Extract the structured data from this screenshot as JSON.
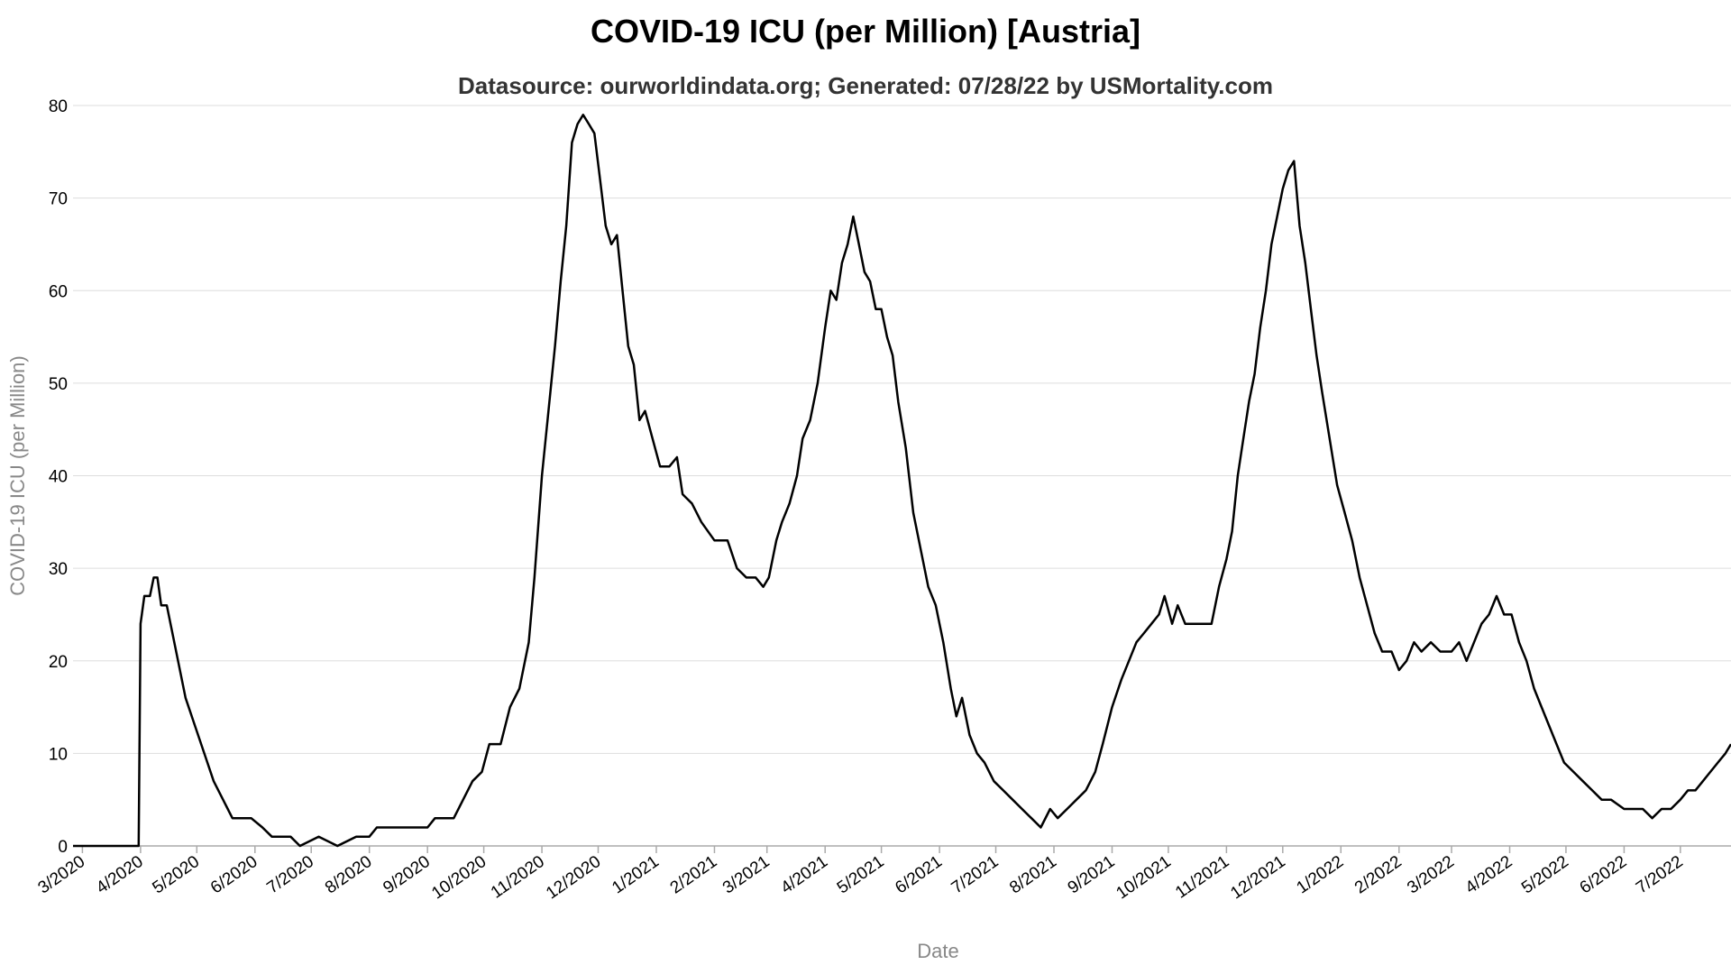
{
  "chart_data": {
    "type": "line",
    "title": "COVID-19 ICU (per Million) [Austria]",
    "subtitle": "Datasource: ourworldindata.org; Generated: 07/28/22 by USMortality.com",
    "xlabel": "Date",
    "ylabel": "COVID-19 ICU (per Million)",
    "ylim": [
      0,
      80
    ],
    "yticks": [
      0,
      10,
      20,
      30,
      40,
      50,
      60,
      70,
      80
    ],
    "xlim": [
      "2020-02-25",
      "2022-07-28"
    ],
    "xticks": [
      {
        "date": "2020-03-01",
        "label": "3/2020"
      },
      {
        "date": "2020-04-01",
        "label": "4/2020"
      },
      {
        "date": "2020-05-01",
        "label": "5/2020"
      },
      {
        "date": "2020-06-01",
        "label": "6/2020"
      },
      {
        "date": "2020-07-01",
        "label": "7/2020"
      },
      {
        "date": "2020-08-01",
        "label": "8/2020"
      },
      {
        "date": "2020-09-01",
        "label": "9/2020"
      },
      {
        "date": "2020-10-01",
        "label": "10/2020"
      },
      {
        "date": "2020-11-01",
        "label": "11/2020"
      },
      {
        "date": "2020-12-01",
        "label": "12/2020"
      },
      {
        "date": "2021-01-01",
        "label": "1/2021"
      },
      {
        "date": "2021-02-01",
        "label": "2/2021"
      },
      {
        "date": "2021-03-01",
        "label": "3/2021"
      },
      {
        "date": "2021-04-01",
        "label": "4/2021"
      },
      {
        "date": "2021-05-01",
        "label": "5/2021"
      },
      {
        "date": "2021-06-01",
        "label": "6/2021"
      },
      {
        "date": "2021-07-01",
        "label": "7/2021"
      },
      {
        "date": "2021-08-01",
        "label": "8/2021"
      },
      {
        "date": "2021-09-01",
        "label": "9/2021"
      },
      {
        "date": "2021-10-01",
        "label": "10/2021"
      },
      {
        "date": "2021-11-01",
        "label": "11/2021"
      },
      {
        "date": "2021-12-01",
        "label": "12/2021"
      },
      {
        "date": "2022-01-01",
        "label": "1/2022"
      },
      {
        "date": "2022-02-01",
        "label": "2/2022"
      },
      {
        "date": "2022-03-01",
        "label": "3/2022"
      },
      {
        "date": "2022-04-01",
        "label": "4/2022"
      },
      {
        "date": "2022-05-01",
        "label": "5/2022"
      },
      {
        "date": "2022-06-01",
        "label": "6/2022"
      },
      {
        "date": "2022-07-01",
        "label": "7/2022"
      }
    ],
    "grid": true,
    "line_color": "#000000",
    "series": [
      {
        "points": [
          [
            "2020-02-25",
            0
          ],
          [
            "2020-03-31",
            0
          ],
          [
            "2020-04-01",
            24
          ],
          [
            "2020-04-03",
            27
          ],
          [
            "2020-04-06",
            27
          ],
          [
            "2020-04-08",
            29
          ],
          [
            "2020-04-10",
            29
          ],
          [
            "2020-04-12",
            26
          ],
          [
            "2020-04-15",
            26
          ],
          [
            "2020-04-20",
            21
          ],
          [
            "2020-04-25",
            16
          ],
          [
            "2020-04-30",
            13
          ],
          [
            "2020-05-05",
            10
          ],
          [
            "2020-05-10",
            7
          ],
          [
            "2020-05-15",
            5
          ],
          [
            "2020-05-20",
            3
          ],
          [
            "2020-05-30",
            3
          ],
          [
            "2020-06-05",
            2
          ],
          [
            "2020-06-10",
            1
          ],
          [
            "2020-06-20",
            1
          ],
          [
            "2020-06-25",
            0
          ],
          [
            "2020-07-05",
            1
          ],
          [
            "2020-07-15",
            0
          ],
          [
            "2020-07-25",
            1
          ],
          [
            "2020-08-01",
            1
          ],
          [
            "2020-08-05",
            2
          ],
          [
            "2020-08-20",
            2
          ],
          [
            "2020-09-01",
            2
          ],
          [
            "2020-09-05",
            3
          ],
          [
            "2020-09-15",
            3
          ],
          [
            "2020-09-20",
            5
          ],
          [
            "2020-09-25",
            7
          ],
          [
            "2020-09-30",
            8
          ],
          [
            "2020-10-04",
            11
          ],
          [
            "2020-10-10",
            11
          ],
          [
            "2020-10-15",
            15
          ],
          [
            "2020-10-20",
            17
          ],
          [
            "2020-10-25",
            22
          ],
          [
            "2020-10-28",
            29
          ],
          [
            "2020-11-01",
            40
          ],
          [
            "2020-11-05",
            48
          ],
          [
            "2020-11-08",
            54
          ],
          [
            "2020-11-11",
            61
          ],
          [
            "2020-11-14",
            67
          ],
          [
            "2020-11-17",
            76
          ],
          [
            "2020-11-20",
            78
          ],
          [
            "2020-11-23",
            79
          ],
          [
            "2020-11-26",
            78
          ],
          [
            "2020-11-29",
            77
          ],
          [
            "2020-12-02",
            72
          ],
          [
            "2020-12-05",
            67
          ],
          [
            "2020-12-08",
            65
          ],
          [
            "2020-12-11",
            66
          ],
          [
            "2020-12-14",
            60
          ],
          [
            "2020-12-17",
            54
          ],
          [
            "2020-12-20",
            52
          ],
          [
            "2020-12-23",
            46
          ],
          [
            "2020-12-26",
            47
          ],
          [
            "2020-12-30",
            44
          ],
          [
            "2021-01-03",
            41
          ],
          [
            "2021-01-08",
            41
          ],
          [
            "2021-01-12",
            42
          ],
          [
            "2021-01-15",
            38
          ],
          [
            "2021-01-20",
            37
          ],
          [
            "2021-01-25",
            35
          ],
          [
            "2021-02-01",
            33
          ],
          [
            "2021-02-08",
            33
          ],
          [
            "2021-02-13",
            30
          ],
          [
            "2021-02-18",
            29
          ],
          [
            "2021-02-23",
            29
          ],
          [
            "2021-02-27",
            28
          ],
          [
            "2021-03-02",
            29
          ],
          [
            "2021-03-06",
            33
          ],
          [
            "2021-03-09",
            35
          ],
          [
            "2021-03-13",
            37
          ],
          [
            "2021-03-17",
            40
          ],
          [
            "2021-03-20",
            44
          ],
          [
            "2021-03-24",
            46
          ],
          [
            "2021-03-28",
            50
          ],
          [
            "2021-04-01",
            56
          ],
          [
            "2021-04-04",
            60
          ],
          [
            "2021-04-07",
            59
          ],
          [
            "2021-04-10",
            63
          ],
          [
            "2021-04-13",
            65
          ],
          [
            "2021-04-16",
            68
          ],
          [
            "2021-04-19",
            65
          ],
          [
            "2021-04-22",
            62
          ],
          [
            "2021-04-25",
            61
          ],
          [
            "2021-04-28",
            58
          ],
          [
            "2021-05-01",
            58
          ],
          [
            "2021-05-04",
            55
          ],
          [
            "2021-05-07",
            53
          ],
          [
            "2021-05-10",
            48
          ],
          [
            "2021-05-14",
            43
          ],
          [
            "2021-05-18",
            36
          ],
          [
            "2021-05-22",
            32
          ],
          [
            "2021-05-26",
            28
          ],
          [
            "2021-05-30",
            26
          ],
          [
            "2021-06-03",
            22
          ],
          [
            "2021-06-07",
            17
          ],
          [
            "2021-06-10",
            14
          ],
          [
            "2021-06-13",
            16
          ],
          [
            "2021-06-17",
            12
          ],
          [
            "2021-06-21",
            10
          ],
          [
            "2021-06-25",
            9
          ],
          [
            "2021-06-30",
            7
          ],
          [
            "2021-07-05",
            6
          ],
          [
            "2021-07-10",
            5
          ],
          [
            "2021-07-15",
            4
          ],
          [
            "2021-07-20",
            3
          ],
          [
            "2021-07-25",
            2
          ],
          [
            "2021-07-30",
            4
          ],
          [
            "2021-08-03",
            3
          ],
          [
            "2021-08-08",
            4
          ],
          [
            "2021-08-13",
            5
          ],
          [
            "2021-08-18",
            6
          ],
          [
            "2021-08-23",
            8
          ],
          [
            "2021-08-27",
            11
          ],
          [
            "2021-09-01",
            15
          ],
          [
            "2021-09-06",
            18
          ],
          [
            "2021-09-10",
            20
          ],
          [
            "2021-09-14",
            22
          ],
          [
            "2021-09-18",
            23
          ],
          [
            "2021-09-22",
            24
          ],
          [
            "2021-09-26",
            25
          ],
          [
            "2021-09-29",
            27
          ],
          [
            "2021-10-03",
            24
          ],
          [
            "2021-10-06",
            26
          ],
          [
            "2021-10-10",
            24
          ],
          [
            "2021-10-20",
            24
          ],
          [
            "2021-10-24",
            24
          ],
          [
            "2021-10-28",
            28
          ],
          [
            "2021-11-01",
            31
          ],
          [
            "2021-11-04",
            34
          ],
          [
            "2021-11-07",
            40
          ],
          [
            "2021-11-10",
            44
          ],
          [
            "2021-11-13",
            48
          ],
          [
            "2021-11-16",
            51
          ],
          [
            "2021-11-19",
            56
          ],
          [
            "2021-11-22",
            60
          ],
          [
            "2021-11-25",
            65
          ],
          [
            "2021-11-28",
            68
          ],
          [
            "2021-12-01",
            71
          ],
          [
            "2021-12-04",
            73
          ],
          [
            "2021-12-07",
            74
          ],
          [
            "2021-12-10",
            67
          ],
          [
            "2021-12-13",
            63
          ],
          [
            "2021-12-16",
            58
          ],
          [
            "2021-12-19",
            53
          ],
          [
            "2021-12-22",
            49
          ],
          [
            "2021-12-26",
            44
          ],
          [
            "2021-12-30",
            39
          ],
          [
            "2022-01-03",
            36
          ],
          [
            "2022-01-07",
            33
          ],
          [
            "2022-01-11",
            29
          ],
          [
            "2022-01-15",
            26
          ],
          [
            "2022-01-19",
            23
          ],
          [
            "2022-01-23",
            21
          ],
          [
            "2022-01-28",
            21
          ],
          [
            "2022-02-01",
            19
          ],
          [
            "2022-02-05",
            20
          ],
          [
            "2022-02-09",
            22
          ],
          [
            "2022-02-13",
            21
          ],
          [
            "2022-02-18",
            22
          ],
          [
            "2022-02-23",
            21
          ],
          [
            "2022-03-01",
            21
          ],
          [
            "2022-03-05",
            22
          ],
          [
            "2022-03-09",
            20
          ],
          [
            "2022-03-13",
            22
          ],
          [
            "2022-03-17",
            24
          ],
          [
            "2022-03-21",
            25
          ],
          [
            "2022-03-25",
            27
          ],
          [
            "2022-03-29",
            25
          ],
          [
            "2022-04-02",
            25
          ],
          [
            "2022-04-06",
            22
          ],
          [
            "2022-04-10",
            20
          ],
          [
            "2022-04-14",
            17
          ],
          [
            "2022-04-18",
            15
          ],
          [
            "2022-04-22",
            13
          ],
          [
            "2022-04-26",
            11
          ],
          [
            "2022-04-30",
            9
          ],
          [
            "2022-05-05",
            8
          ],
          [
            "2022-05-10",
            7
          ],
          [
            "2022-05-15",
            6
          ],
          [
            "2022-05-20",
            5
          ],
          [
            "2022-05-25",
            5
          ],
          [
            "2022-06-01",
            4
          ],
          [
            "2022-06-06",
            4
          ],
          [
            "2022-06-11",
            4
          ],
          [
            "2022-06-16",
            3
          ],
          [
            "2022-06-21",
            4
          ],
          [
            "2022-06-26",
            4
          ],
          [
            "2022-07-01",
            5
          ],
          [
            "2022-07-05",
            6
          ],
          [
            "2022-07-09",
            6
          ],
          [
            "2022-07-13",
            7
          ],
          [
            "2022-07-17",
            8
          ],
          [
            "2022-07-21",
            9
          ],
          [
            "2022-07-25",
            10
          ],
          [
            "2022-07-28",
            11
          ]
        ]
      }
    ]
  }
}
